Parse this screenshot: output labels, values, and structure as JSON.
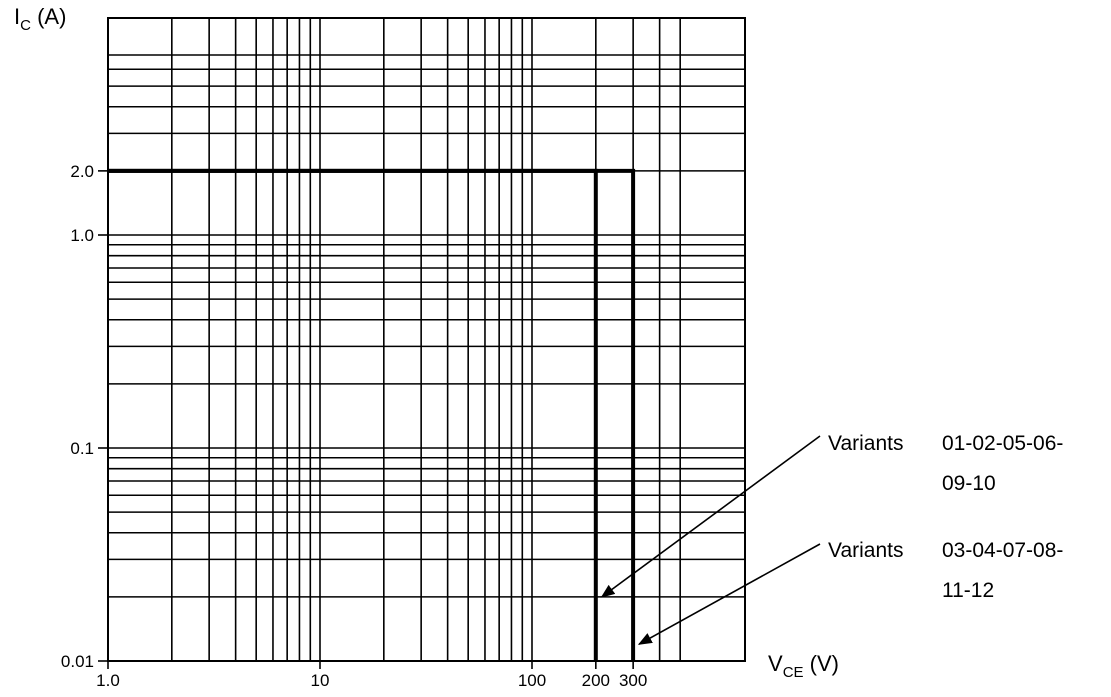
{
  "chart_data": {
    "type": "line",
    "title": "",
    "xlabel": {
      "main": "V",
      "sub": "CE",
      "unit": " (V)"
    },
    "ylabel": {
      "main": "I",
      "sub": "C",
      "unit": " (A)"
    },
    "x_scale": "log",
    "y_scale": "log",
    "xlim": [
      1,
      500
    ],
    "ylim": [
      0.01,
      7
    ],
    "grid": true,
    "x_ticks": [
      {
        "value": 1,
        "label": "1.0"
      },
      {
        "value": 10,
        "label": "10"
      },
      {
        "value": 100,
        "label": "100"
      },
      {
        "value": 200,
        "label": "200"
      },
      {
        "value": 300,
        "label": "300"
      }
    ],
    "y_ticks": [
      {
        "value": 0.01,
        "label": "0.01"
      },
      {
        "value": 0.1,
        "label": "0.1"
      },
      {
        "value": 1,
        "label": "1.0"
      },
      {
        "value": 2,
        "label": "2.0"
      }
    ],
    "series": [
      {
        "x": [
          1,
          200,
          200
        ],
        "y": [
          2.0,
          2.0,
          0.01
        ]
      },
      {
        "x": [
          1,
          300,
          300
        ],
        "y": [
          2.0,
          2.0,
          0.01
        ]
      }
    ],
    "annotations": [
      {
        "label": "Variants",
        "codes_line1": "01-02-05-06-",
        "codes_line2": "09-10",
        "points_to": {
          "x": 200,
          "y": 0.02
        }
      },
      {
        "label": "Variants",
        "codes_line1": "03-04-07-08-",
        "codes_line2": "11-12",
        "points_to": {
          "x": 300,
          "y": 0.012
        }
      }
    ]
  }
}
